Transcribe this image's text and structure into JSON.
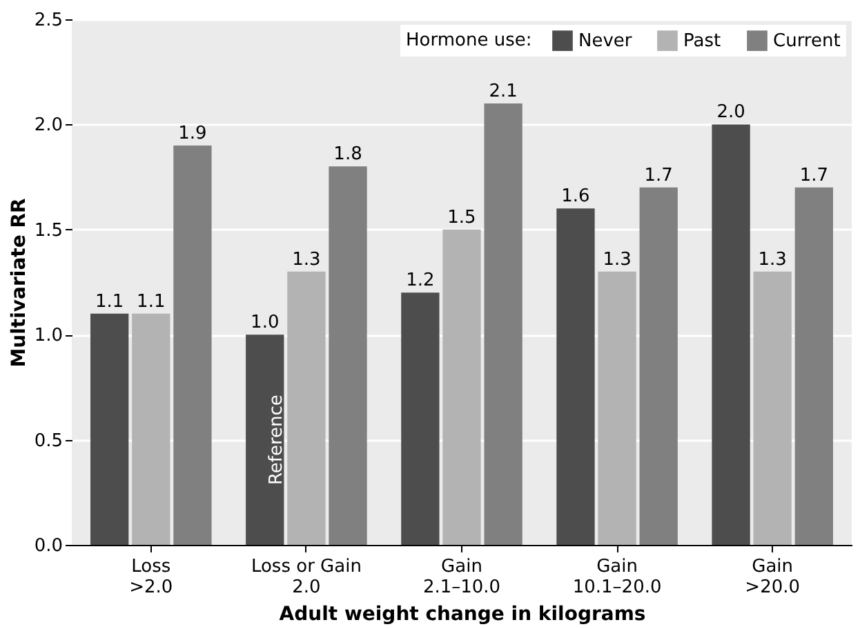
{
  "chart_data": {
    "type": "bar",
    "xlabel": "Adult weight change in kilograms",
    "ylabel": "Multivariate RR",
    "legend_title": "Hormone use:",
    "categories": [
      "Loss\n>2.0",
      "Loss or Gain\n2.0",
      "Gain\n2.1–10.0",
      "Gain\n10.1–20.0",
      "Gain\n>20.0"
    ],
    "series": [
      {
        "name": "Never",
        "color": "#4d4d4d",
        "values": [
          1.1,
          1.0,
          1.2,
          1.6,
          2.0
        ],
        "value_labels": [
          "1.1",
          "1.0",
          "1.2",
          "1.6",
          "2.0"
        ]
      },
      {
        "name": "Past",
        "color": "#b3b3b3",
        "values": [
          1.1,
          1.3,
          1.5,
          1.3,
          1.3
        ],
        "value_labels": [
          "1.1",
          "1.3",
          "1.5",
          "1.3",
          "1.3"
        ]
      },
      {
        "name": "Current",
        "color": "#808080",
        "values": [
          1.9,
          1.8,
          2.1,
          1.7,
          1.7
        ],
        "value_labels": [
          "1.9",
          "1.8",
          "2.1",
          "1.7",
          "1.7"
        ]
      }
    ],
    "ylim": [
      0,
      2.5
    ],
    "yticks": [
      {
        "value": 0,
        "label": "0.0"
      },
      {
        "value": 0.5,
        "label": "0.5"
      },
      {
        "value": 1,
        "label": "1.0"
      },
      {
        "value": 1.5,
        "label": "1.5"
      },
      {
        "value": 2,
        "label": "2.0"
      },
      {
        "value": 2.5,
        "label": "2.5"
      }
    ],
    "grid": "y",
    "legend": "top right",
    "annotations": [
      "Reference"
    ]
  }
}
